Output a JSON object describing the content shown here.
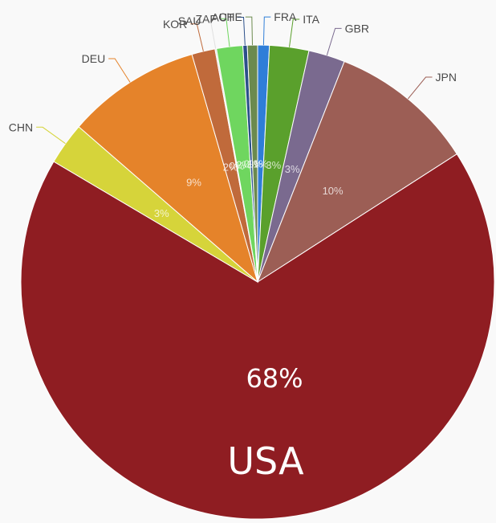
{
  "chart_data": {
    "type": "pie",
    "title": "",
    "slices": [
      {
        "name": "FRA",
        "value": 0.8,
        "color": "#2f7ed8",
        "pct_label": "1%"
      },
      {
        "name": "ITA",
        "value": 2.7,
        "color": "#5aa02c",
        "pct_label": "3%"
      },
      {
        "name": "GBR",
        "value": 2.5,
        "color": "#7a6a8f",
        "pct_label": "3%"
      },
      {
        "name": "JPN",
        "value": 10.0,
        "color": "#9c5e55",
        "pct_label": "10%"
      },
      {
        "name": "USA",
        "value": 67.9,
        "color": "#8f1d22",
        "pct_label": "68%"
      },
      {
        "name": "CHN",
        "value": 2.9,
        "color": "#d6d43a",
        "pct_label": "3%"
      },
      {
        "name": "DEU",
        "value": 9.2,
        "color": "#e5832a",
        "pct_label": "9%"
      },
      {
        "name": "KOR",
        "value": 1.6,
        "color": "#c06a3b",
        "pct_label": "2%"
      },
      {
        "name": "SAU",
        "value": 0.1,
        "color": "#e0e0e0",
        "pct_label": "0%"
      },
      {
        "name": "ZAF",
        "value": 1.8,
        "color": "#6fd65f",
        "pct_label": "2%"
      },
      {
        "name": "AUT",
        "value": 0.3,
        "color": "#2b4f8a",
        "pct_label": "0%"
      },
      {
        "name": "CHE",
        "value": 0.7,
        "color": "#6b8a4e",
        "pct_label": "1%"
      }
    ],
    "highlight": {
      "name": "USA",
      "pct": "68%"
    }
  }
}
